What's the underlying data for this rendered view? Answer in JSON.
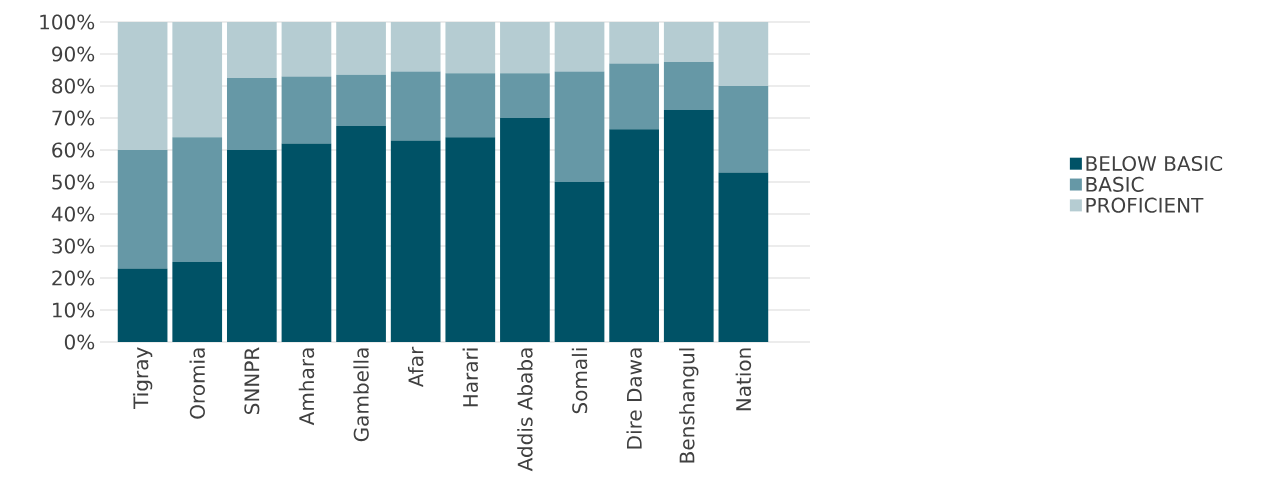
{
  "chart_data": {
    "type": "bar",
    "stacked": true,
    "categories": [
      "Tigray",
      "Oromia",
      "SNNPR",
      "Amhara",
      "Gambella",
      "Afar",
      "Harari",
      "Addis Ababa",
      "Somali",
      "Dire Dawa",
      "Benshangul",
      "Nation"
    ],
    "series": [
      {
        "name": "BELOW BASIC",
        "color": "#005266",
        "values": [
          23,
          25,
          60,
          62,
          67.5,
          63,
          64,
          70,
          50,
          66.5,
          72.5,
          53
        ]
      },
      {
        "name": "BASIC",
        "color": "#6698a6",
        "values": [
          37,
          39,
          22.5,
          21,
          16,
          21.5,
          20,
          14,
          34.5,
          20.5,
          15,
          27
        ]
      },
      {
        "name": "PROFICIENT",
        "color": "#b5ccd2",
        "values": [
          40,
          36,
          17.5,
          17,
          16.5,
          15.5,
          16,
          16,
          15.5,
          13,
          12.5,
          20
        ]
      }
    ],
    "ylim": [
      0,
      100
    ],
    "yticks": [
      {
        "value": 0,
        "label": "0%"
      },
      {
        "value": 10,
        "label": "10%"
      },
      {
        "value": 20,
        "label": "20%"
      },
      {
        "value": 30,
        "label": "30%"
      },
      {
        "value": 40,
        "label": "40%"
      },
      {
        "value": 50,
        "label": "50%"
      },
      {
        "value": 60,
        "label": "60%"
      },
      {
        "value": 70,
        "label": "70%"
      },
      {
        "value": 80,
        "label": "80%"
      },
      {
        "value": 90,
        "label": "90%"
      },
      {
        "value": 100,
        "label": "100%"
      }
    ],
    "grid": "y",
    "legend": "right"
  }
}
